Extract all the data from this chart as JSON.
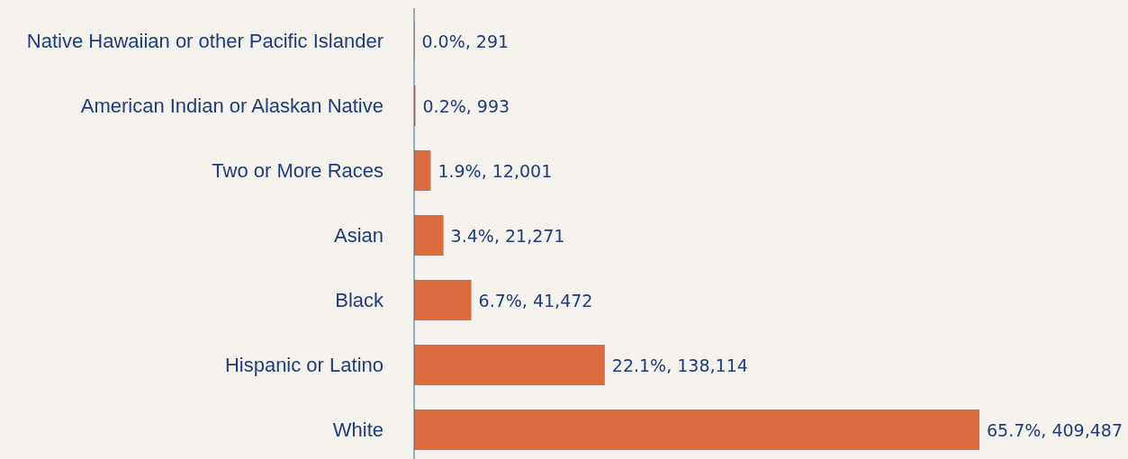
{
  "chart_data": {
    "type": "bar",
    "orientation": "horizontal",
    "categories": [
      "Native Hawaiian or other Pacific Islander",
      "American Indian or Alaskan Native",
      "Two or More Races",
      "Asian",
      "Black",
      "Hispanic or Latino",
      "White"
    ],
    "values": [
      291,
      993,
      12001,
      21271,
      41472,
      138114,
      409487
    ],
    "value_labels": [
      "0.0%, 291",
      "0.2%, 993",
      "1.9%, 12,001",
      "3.4%, 21,271",
      "6.7%, 41,472",
      "22.1%, 138,114",
      "65.7%, 409,487"
    ],
    "color": "#db6c40",
    "grid": false,
    "legend": false
  }
}
